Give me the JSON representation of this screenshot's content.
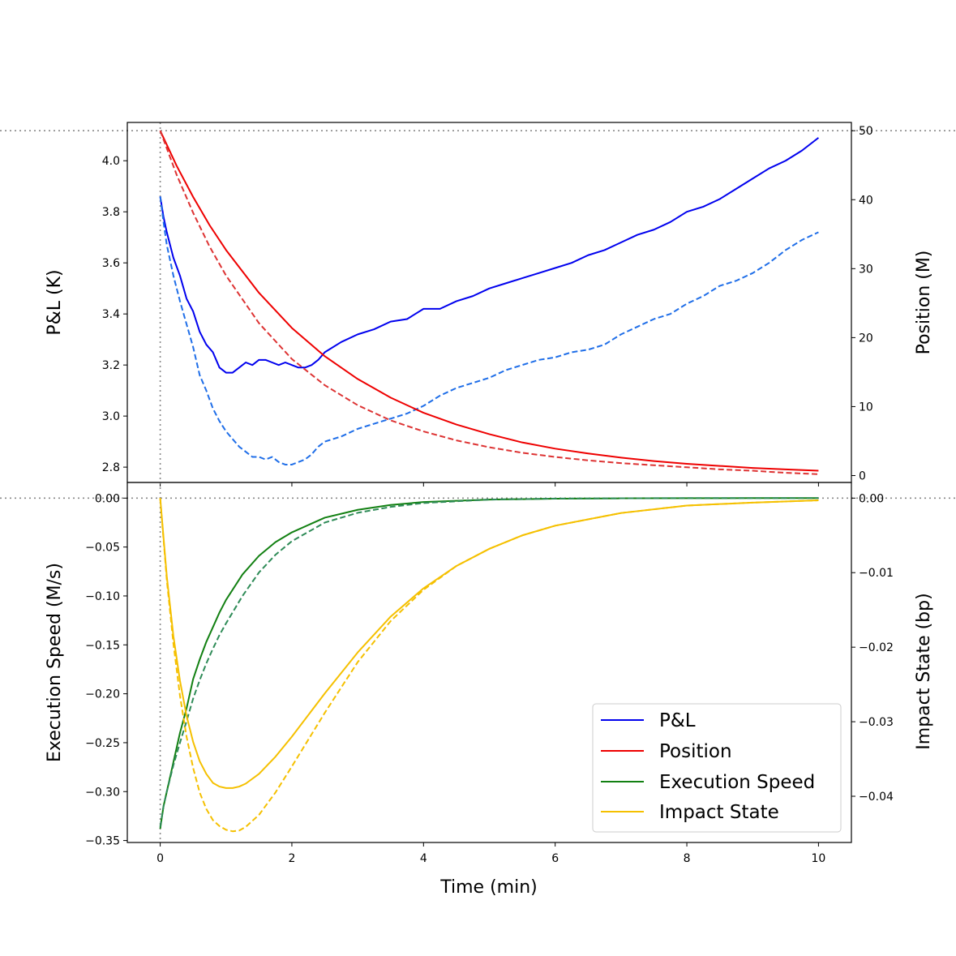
{
  "chart_data": [
    {
      "type": "line",
      "panel": "top",
      "xlabel": "",
      "ylabel_left": "P&L (K)",
      "ylabel_right": "Position (M)",
      "xlim": [
        -0.5,
        10.5
      ],
      "ylim_left": [
        2.74,
        4.15
      ],
      "ylim_right": [
        -1,
        51.2
      ],
      "xticks": [
        0,
        2,
        4,
        6,
        8,
        10
      ],
      "yticks_left": [
        "2.8",
        "3.0",
        "3.2",
        "3.4",
        "3.6",
        "3.8",
        "4.0"
      ],
      "yticks_right": [
        "0",
        "10",
        "20",
        "30",
        "40",
        "50"
      ],
      "reference_lines": {
        "vertical_x": 0,
        "horizontal_right_y": 50
      },
      "series": [
        {
          "name": "P&L",
          "axis": "left",
          "style": "solid",
          "color": "#0000ee",
          "x": [
            0,
            0.05,
            0.1,
            0.2,
            0.3,
            0.4,
            0.5,
            0.6,
            0.7,
            0.8,
            0.9,
            1.0,
            1.1,
            1.2,
            1.3,
            1.4,
            1.5,
            1.6,
            1.7,
            1.8,
            1.9,
            2.0,
            2.1,
            2.2,
            2.3,
            2.4,
            2.5,
            2.75,
            3.0,
            3.25,
            3.5,
            3.75,
            4.0,
            4.25,
            4.5,
            4.75,
            5.0,
            5.25,
            5.5,
            5.75,
            6.0,
            6.25,
            6.5,
            6.75,
            7.0,
            7.25,
            7.5,
            7.75,
            8.0,
            8.25,
            8.5,
            8.75,
            9.0,
            9.25,
            9.5,
            9.75,
            10.0
          ],
          "y": [
            3.86,
            3.78,
            3.72,
            3.62,
            3.55,
            3.46,
            3.41,
            3.33,
            3.28,
            3.25,
            3.19,
            3.17,
            3.17,
            3.19,
            3.21,
            3.2,
            3.22,
            3.22,
            3.21,
            3.2,
            3.21,
            3.2,
            3.19,
            3.19,
            3.2,
            3.22,
            3.25,
            3.29,
            3.32,
            3.34,
            3.37,
            3.38,
            3.42,
            3.42,
            3.45,
            3.47,
            3.5,
            3.52,
            3.54,
            3.56,
            3.58,
            3.6,
            3.63,
            3.65,
            3.68,
            3.71,
            3.73,
            3.76,
            3.8,
            3.82,
            3.85,
            3.89,
            3.93,
            3.97,
            4.0,
            4.04,
            4.09
          ]
        },
        {
          "name": "",
          "axis": "left",
          "style": "dashed",
          "color": "#1f6ee8",
          "x": [
            0,
            0.05,
            0.1,
            0.2,
            0.3,
            0.4,
            0.5,
            0.6,
            0.7,
            0.8,
            0.9,
            1.0,
            1.1,
            1.2,
            1.3,
            1.4,
            1.5,
            1.6,
            1.7,
            1.8,
            1.9,
            2.0,
            2.1,
            2.2,
            2.3,
            2.4,
            2.5,
            2.75,
            3.0,
            3.25,
            3.5,
            3.75,
            4.0,
            4.25,
            4.5,
            4.75,
            5.0,
            5.25,
            5.5,
            5.75,
            6.0,
            6.25,
            6.5,
            6.75,
            7.0,
            7.25,
            7.5,
            7.75,
            8.0,
            8.25,
            8.5,
            8.75,
            9.0,
            9.25,
            9.5,
            9.75,
            10.0
          ],
          "y": [
            3.86,
            3.76,
            3.67,
            3.55,
            3.45,
            3.36,
            3.27,
            3.16,
            3.1,
            3.03,
            2.98,
            2.94,
            2.91,
            2.88,
            2.86,
            2.84,
            2.84,
            2.83,
            2.84,
            2.82,
            2.81,
            2.81,
            2.82,
            2.83,
            2.85,
            2.88,
            2.9,
            2.92,
            2.95,
            2.97,
            2.99,
            3.01,
            3.04,
            3.08,
            3.11,
            3.13,
            3.15,
            3.18,
            3.2,
            3.22,
            3.23,
            3.25,
            3.26,
            3.28,
            3.32,
            3.35,
            3.38,
            3.4,
            3.44,
            3.47,
            3.51,
            3.53,
            3.56,
            3.6,
            3.65,
            3.69,
            3.72
          ]
        },
        {
          "name": "Position",
          "axis": "right",
          "style": "solid",
          "color": "#ee0000",
          "x": [
            0,
            0.25,
            0.5,
            0.75,
            1.0,
            1.5,
            2.0,
            2.5,
            3.0,
            3.5,
            4.0,
            4.5,
            5.0,
            5.5,
            6.0,
            6.5,
            7.0,
            7.5,
            8.0,
            8.5,
            9.0,
            9.5,
            10.0
          ],
          "y": [
            50,
            44.9,
            40.4,
            36.3,
            32.7,
            26.5,
            21.4,
            17.3,
            14.0,
            11.3,
            9.1,
            7.4,
            6.0,
            4.8,
            3.9,
            3.2,
            2.6,
            2.1,
            1.7,
            1.4,
            1.1,
            0.9,
            0.7
          ]
        },
        {
          "name": "",
          "axis": "right",
          "style": "dashed",
          "color": "#dd3333",
          "x": [
            0,
            0.25,
            0.5,
            0.75,
            1.0,
            1.5,
            2.0,
            2.5,
            3.0,
            3.5,
            4.0,
            4.5,
            5.0,
            5.5,
            6.0,
            6.5,
            7.0,
            7.5,
            8.0,
            8.5,
            9.0,
            9.5,
            10.0
          ],
          "y": [
            50,
            43.6,
            38.1,
            33.2,
            29.0,
            22.1,
            16.9,
            13.1,
            10.2,
            8.0,
            6.4,
            5.1,
            4.1,
            3.3,
            2.7,
            2.2,
            1.8,
            1.5,
            1.2,
            0.9,
            0.7,
            0.4,
            0.2
          ]
        }
      ]
    },
    {
      "type": "line",
      "panel": "bottom",
      "xlabel": "Time (min)",
      "ylabel_left": "Execution Speed (M/s)",
      "ylabel_right": "Impact State (bp)",
      "xlim": [
        -0.5,
        10.5
      ],
      "ylim_left": [
        -0.352,
        0.016
      ],
      "ylim_right": [
        -0.0462,
        0.0021
      ],
      "xticks": [
        0,
        2,
        4,
        6,
        8,
        10
      ],
      "yticks_left": [
        "0.00",
        "−0.05",
        "−0.10",
        "−0.15",
        "−0.20",
        "−0.25",
        "−0.30",
        "−0.35"
      ],
      "yticks_right": [
        "0.00",
        "−0.01",
        "−0.02",
        "−0.03",
        "−0.04"
      ],
      "reference_lines": {
        "vertical_x": 0,
        "horizontal_left_y": 0
      },
      "series": [
        {
          "name": "Execution Speed",
          "axis": "left",
          "style": "solid",
          "color": "#128012",
          "x": [
            0,
            0.05,
            0.1,
            0.15,
            0.2,
            0.3,
            0.4,
            0.5,
            0.6,
            0.7,
            0.8,
            0.9,
            1.0,
            1.25,
            1.5,
            1.75,
            2.0,
            2.5,
            3.0,
            3.5,
            4.0,
            5.0,
            6.0,
            7.0,
            8.0,
            9.0,
            10.0
          ],
          "y": [
            -0.338,
            -0.315,
            -0.3,
            -0.285,
            -0.27,
            -0.24,
            -0.215,
            -0.185,
            -0.165,
            -0.147,
            -0.132,
            -0.117,
            -0.104,
            -0.078,
            -0.059,
            -0.045,
            -0.035,
            -0.02,
            -0.012,
            -0.007,
            -0.004,
            -0.0015,
            -0.0006,
            -0.0002,
            -0.0001,
            0.0,
            0.0
          ]
        },
        {
          "name": "",
          "axis": "left",
          "style": "dashed",
          "color": "#2e8b57",
          "x": [
            0,
            0.05,
            0.1,
            0.2,
            0.3,
            0.4,
            0.5,
            0.6,
            0.7,
            0.8,
            0.9,
            1.0,
            1.25,
            1.5,
            1.75,
            2.0,
            2.5,
            3.0,
            3.5,
            4.0,
            5.0,
            6.0,
            7.0,
            8.0,
            9.0,
            10.0
          ],
          "y": [
            -0.336,
            -0.315,
            -0.3,
            -0.273,
            -0.25,
            -0.228,
            -0.205,
            -0.186,
            -0.169,
            -0.154,
            -0.14,
            -0.128,
            -0.1,
            -0.076,
            -0.058,
            -0.044,
            -0.025,
            -0.015,
            -0.009,
            -0.005,
            -0.0015,
            -0.0005,
            -0.0002,
            0.0,
            0.0,
            0.0
          ]
        },
        {
          "name": "Impact State",
          "axis": "right",
          "style": "solid",
          "color": "#f5c000",
          "x": [
            0,
            0.1,
            0.2,
            0.3,
            0.4,
            0.5,
            0.6,
            0.7,
            0.8,
            0.9,
            1.0,
            1.1,
            1.2,
            1.3,
            1.5,
            1.75,
            2.0,
            2.5,
            3.0,
            3.5,
            4.0,
            4.5,
            5.0,
            5.5,
            6.0,
            7.0,
            8.0,
            9.0,
            10.0
          ],
          "y": [
            0.0,
            -0.0105,
            -0.0185,
            -0.0245,
            -0.0292,
            -0.0327,
            -0.0353,
            -0.037,
            -0.0382,
            -0.0387,
            -0.0389,
            -0.0389,
            -0.0387,
            -0.0383,
            -0.037,
            -0.0347,
            -0.032,
            -0.0262,
            -0.0207,
            -0.0159,
            -0.0121,
            -0.0091,
            -0.0068,
            -0.005,
            -0.0037,
            -0.002,
            -0.001,
            -0.0006,
            -0.0003
          ]
        },
        {
          "name": "",
          "axis": "right",
          "style": "dashed",
          "color": "#f5c000",
          "x": [
            0,
            0.1,
            0.2,
            0.3,
            0.4,
            0.5,
            0.6,
            0.7,
            0.8,
            0.9,
            1.0,
            1.1,
            1.2,
            1.3,
            1.5,
            1.75,
            2.0,
            2.5,
            3.0,
            3.5,
            4.0,
            4.5,
            5.0,
            5.5,
            6.0,
            7.0,
            8.0,
            9.0,
            10.0
          ],
          "y": [
            0.0,
            -0.011,
            -0.0195,
            -0.0265,
            -0.032,
            -0.0362,
            -0.0395,
            -0.0417,
            -0.0432,
            -0.044,
            -0.0445,
            -0.0447,
            -0.0446,
            -0.0441,
            -0.0425,
            -0.0395,
            -0.036,
            -0.0288,
            -0.022,
            -0.0165,
            -0.0123,
            -0.0091,
            -0.0068,
            -0.005,
            -0.0037,
            -0.002,
            -0.001,
            -0.0006,
            -0.0003
          ]
        }
      ]
    }
  ],
  "legend": {
    "placement": "lower-right of bottom panel",
    "entries": [
      {
        "label": "P&L",
        "color": "#0000ee"
      },
      {
        "label": "Position",
        "color": "#ee0000"
      },
      {
        "label": "Execution Speed",
        "color": "#128012"
      },
      {
        "label": "Impact State",
        "color": "#f5c000"
      }
    ]
  }
}
